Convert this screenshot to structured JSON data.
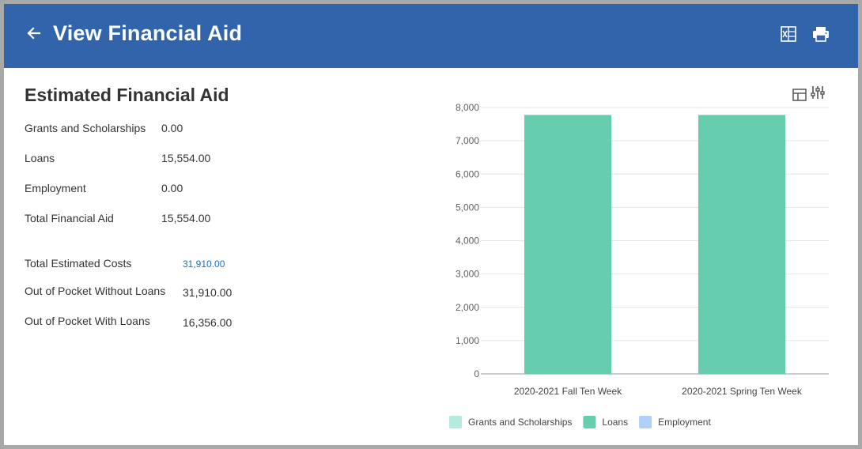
{
  "header": {
    "title": "View Financial Aid",
    "background": "#3164ab",
    "icons": [
      "back-arrow-icon",
      "excel-export-icon",
      "print-icon"
    ]
  },
  "summary": {
    "title": "Estimated Financial Aid",
    "rows": [
      {
        "label": "Grants and Scholarships",
        "value": "0.00"
      },
      {
        "label": "Loans",
        "value": "15,554.00"
      },
      {
        "label": "Employment",
        "value": "0.00"
      },
      {
        "label": "Total Financial Aid",
        "value": "15,554.00"
      }
    ],
    "cost_rows": [
      {
        "label": "Total Estimated Costs",
        "value": "31,910.00",
        "link": true
      },
      {
        "label": "Out of Pocket Without Loans",
        "value": "31,910.00",
        "link": false
      },
      {
        "label": "Out of Pocket With Loans",
        "value": "16,356.00",
        "link": false
      }
    ]
  },
  "chart_tools": [
    "table-view-icon",
    "chart-settings-icon"
  ],
  "chart_data": {
    "type": "bar",
    "stacked": true,
    "categories": [
      "2020-2021 Fall Ten Week",
      "2020-2021 Spring Ten Week"
    ],
    "series": [
      {
        "name": "Grants and Scholarships",
        "values": [
          0,
          0
        ],
        "color": "#b3ebdc"
      },
      {
        "name": "Loans",
        "values": [
          7777,
          7777
        ],
        "color": "#66cdae"
      },
      {
        "name": "Employment",
        "values": [
          0,
          0
        ],
        "color": "#afd0fb"
      }
    ],
    "yticks": [
      "0",
      "1,000",
      "2,000",
      "3,000",
      "4,000",
      "5,000",
      "6,000",
      "7,000",
      "8,000"
    ],
    "ylim": [
      0,
      8000
    ],
    "grid": true,
    "legend": "bottom"
  }
}
